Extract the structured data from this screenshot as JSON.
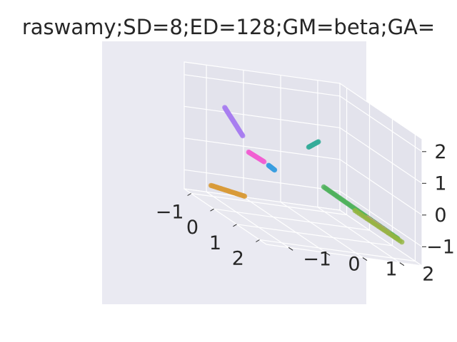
{
  "chart_data": {
    "type": "scatter",
    "projection": "3d",
    "title": "raswamy;SD=8;ED=128;GM=beta;GA=",
    "xlabel": "",
    "ylabel": "",
    "zlabel": "",
    "xlim": [
      -1.3,
      2.3
    ],
    "ylim": [
      -1.6,
      2.6
    ],
    "zlim": [
      -1.6,
      2.4
    ],
    "x_ticks": [
      "−1",
      "0",
      "1",
      "2"
    ],
    "y_ticks": [
      "−1",
      "0",
      "1",
      "2"
    ],
    "z_ticks": [
      "−1",
      "0",
      "1",
      "2"
    ],
    "x_tick_values": [
      -1,
      0,
      1,
      2
    ],
    "y_tick_values": [
      -1,
      0,
      1,
      2
    ],
    "z_tick_values": [
      -1,
      0,
      1,
      2
    ],
    "grid": true,
    "background_color": "#eaeaf2",
    "clusters": [
      {
        "color": "#a77ef0",
        "from": [
          -1.15,
          -0.6,
          1.2
        ],
        "to": [
          -0.85,
          -0.3,
          0.5
        ],
        "points": 40
      },
      {
        "color": "#f15fd2",
        "from": [
          -0.75,
          -0.2,
          0.05
        ],
        "to": [
          -0.4,
          0.0,
          -0.05
        ],
        "points": 28
      },
      {
        "color": "#3a9ee0",
        "from": [
          -0.28,
          0.05,
          -0.1
        ],
        "to": [
          -0.1,
          0.1,
          -0.15
        ],
        "points": 18
      },
      {
        "color": "#36ad9a",
        "from": [
          -0.15,
          1.05,
          0.7
        ],
        "to": [
          -0.05,
          1.25,
          0.95
        ],
        "points": 20
      },
      {
        "color": "#d89b3a",
        "from": [
          -1.1,
          -1.0,
          -1.3
        ],
        "to": [
          -0.6,
          -0.4,
          -1.3
        ],
        "points": 40
      },
      {
        "color": "#4fb25d",
        "from": [
          -0.3,
          1.55,
          -0.55
        ],
        "to": [
          1.4,
          2.5,
          -1.2
        ],
        "points": 55
      },
      {
        "color": "#e88aa0",
        "from": [
          0.7,
          2.1,
          -0.95
        ],
        "to": [
          1.15,
          2.4,
          -1.15
        ],
        "points": 15
      },
      {
        "color": "#93b541",
        "from": [
          0.5,
          1.9,
          -0.85
        ],
        "to": [
          1.5,
          2.55,
          -1.25
        ],
        "points": 25
      }
    ]
  }
}
